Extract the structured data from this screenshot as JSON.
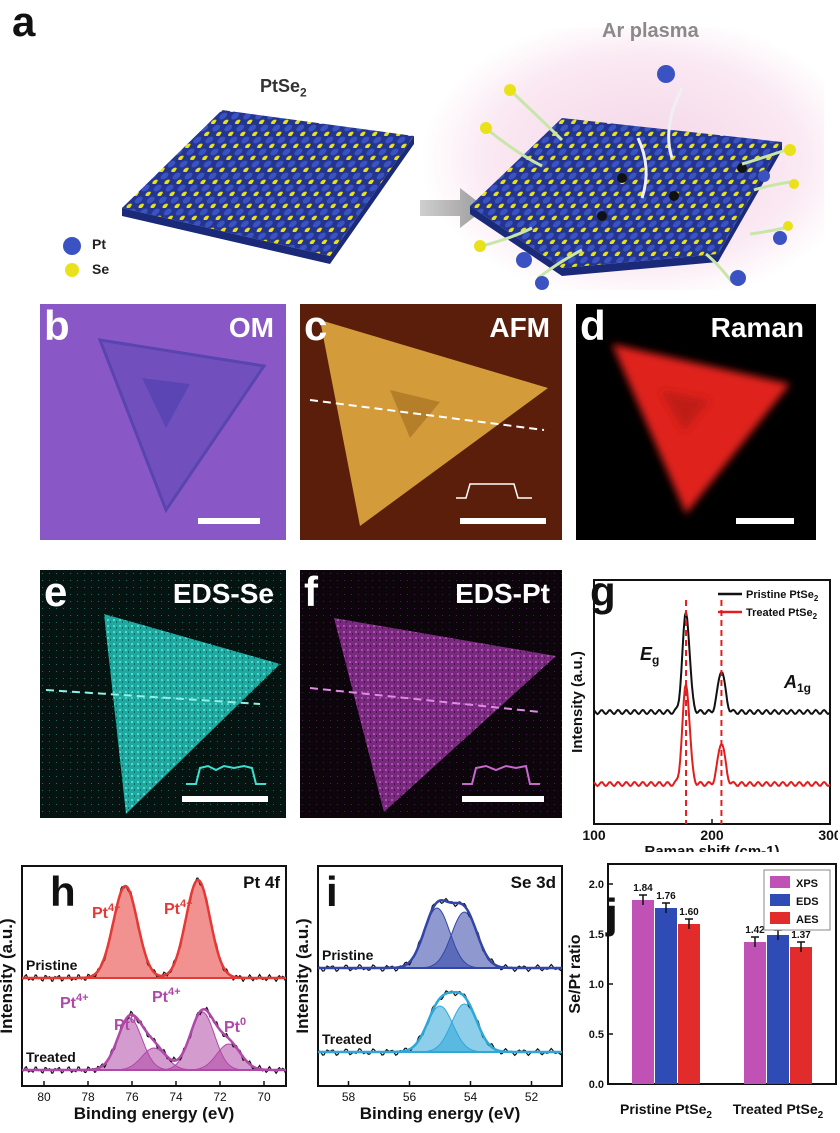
{
  "panel_a": {
    "label": "a",
    "pristine_title": "PtSe",
    "pristine_sub": "2",
    "treated_title": "Ar plasma",
    "legend": [
      {
        "name": "Pt",
        "color": "#2f46b0"
      },
      {
        "name": "Se",
        "color": "#e8e21c"
      }
    ]
  },
  "panel_b": {
    "label": "b",
    "title": "OM"
  },
  "panel_c": {
    "label": "c",
    "title": "AFM"
  },
  "panel_d": {
    "label": "d",
    "title": "Raman"
  },
  "panel_e": {
    "label": "e",
    "title": "EDS-Se"
  },
  "panel_f": {
    "label": "f",
    "title": "EDS-Pt"
  },
  "panel_g": {
    "label": "g"
  },
  "panel_h": {
    "label": "h"
  },
  "panel_i": {
    "label": "i"
  },
  "panel_j": {
    "label": "j"
  },
  "chart_data": [
    {
      "id": "g",
      "type": "line",
      "xlabel": "Raman shift (cm-1)",
      "ylabel": "Intensity (a.u.)",
      "xlim": [
        100,
        300
      ],
      "xticks": [
        "100",
        "200",
        "300"
      ],
      "series": [
        {
          "name": "Pristine PtSe2",
          "color": "#111111",
          "peaks": [
            178,
            208
          ]
        },
        {
          "name": "Treated PtSe2",
          "color": "#e11e1e",
          "peaks": [
            178,
            208
          ]
        }
      ],
      "legend": [
        "Pristine PtSe",
        "Treated PtSe"
      ],
      "annotations": [
        "E",
        "g",
        "A",
        "1g"
      ]
    },
    {
      "id": "h",
      "type": "line",
      "title": "Pt 4f",
      "xlabel": "Binding energy (eV)",
      "ylabel": "Intensity (a.u.)",
      "xlim": [
        81,
        69
      ],
      "xticks": [
        "80",
        "78",
        "76",
        "74",
        "72",
        "70"
      ],
      "series": [
        {
          "name": "Pristine",
          "color": "#e53935",
          "peaks": [
            {
              "x": 76.3,
              "label": "Pt4+"
            },
            {
              "x": 73.0,
              "label": "Pt4+"
            }
          ]
        },
        {
          "name": "Treated",
          "color": "#b048a8",
          "peaks": [
            {
              "x": 76.1,
              "label": "Pt4+"
            },
            {
              "x": 75.0,
              "label": "Pt0"
            },
            {
              "x": 72.8,
              "label": "Pt4+"
            },
            {
              "x": 71.6,
              "label": "Pt0"
            }
          ]
        }
      ],
      "peak_labels": [
        "Pt",
        "4+",
        "Pt",
        "4+",
        "Pt",
        "4+",
        "Pt",
        "0",
        "Pt",
        "4+",
        "Pt",
        "0"
      ]
    },
    {
      "id": "i",
      "type": "line",
      "title": "Se 3d",
      "xlabel": "Binding energy (eV)",
      "ylabel": "Intensity (a.u.)",
      "xlim": [
        59,
        51
      ],
      "xticks": [
        "58",
        "56",
        "54",
        "52"
      ],
      "series": [
        {
          "name": "Pristine",
          "color": "#3346a8",
          "peaks": [
            55.1,
            54.2
          ]
        },
        {
          "name": "Treated",
          "color": "#2fa8d8",
          "peaks": [
            55.0,
            54.2
          ]
        }
      ]
    },
    {
      "id": "j",
      "type": "bar",
      "ylabel": "Se/Pt ratio",
      "ylim": [
        0.0,
        2.0
      ],
      "yticks": [
        "0.0",
        "0.5",
        "1.0",
        "1.5",
        "2.0"
      ],
      "categories": [
        "Pristine PtSe",
        "Treated PtSe"
      ],
      "category_sub": "2",
      "series": [
        {
          "name": "XPS",
          "color": "#c052b6",
          "values": [
            1.84,
            1.42
          ]
        },
        {
          "name": "EDS",
          "color": "#2f4bb5",
          "values": [
            1.76,
            1.49
          ]
        },
        {
          "name": "AES",
          "color": "#e22b2b",
          "values": [
            1.6,
            1.37
          ]
        }
      ],
      "value_labels": [
        [
          "1.84",
          "1.76",
          "1.60"
        ],
        [
          "1.42",
          "1.49",
          "1.37"
        ]
      ]
    }
  ]
}
